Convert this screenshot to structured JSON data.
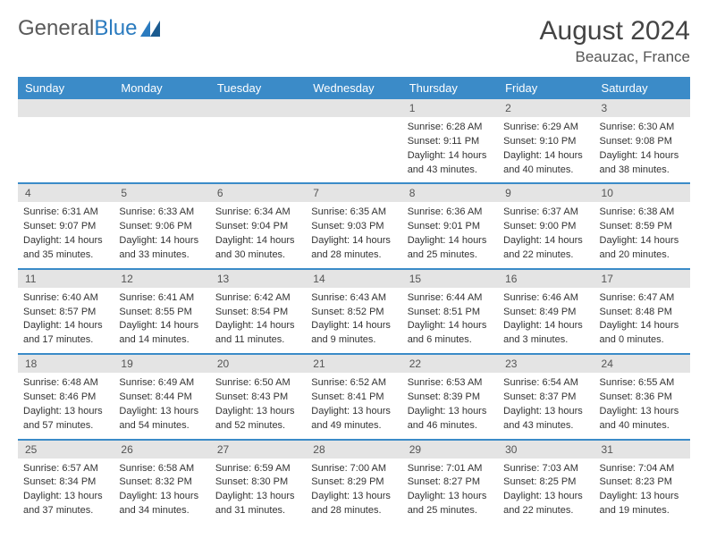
{
  "brand": {
    "part1": "General",
    "part2": "Blue"
  },
  "header": {
    "title": "August 2024",
    "location": "Beauzac, France"
  },
  "colors": {
    "header_blue": "#3b8bc8",
    "daynum_bg": "#e4e4e4",
    "row_border": "#3b8bc8",
    "text": "#333333",
    "title": "#444444"
  },
  "weekdays": [
    "Sunday",
    "Monday",
    "Tuesday",
    "Wednesday",
    "Thursday",
    "Friday",
    "Saturday"
  ],
  "calendar": {
    "rows": [
      [
        {
          "day": "",
          "sunrise": "",
          "sunset": "",
          "daylight1": "",
          "daylight2": ""
        },
        {
          "day": "",
          "sunrise": "",
          "sunset": "",
          "daylight1": "",
          "daylight2": ""
        },
        {
          "day": "",
          "sunrise": "",
          "sunset": "",
          "daylight1": "",
          "daylight2": ""
        },
        {
          "day": "",
          "sunrise": "",
          "sunset": "",
          "daylight1": "",
          "daylight2": ""
        },
        {
          "day": "1",
          "sunrise": "Sunrise: 6:28 AM",
          "sunset": "Sunset: 9:11 PM",
          "daylight1": "Daylight: 14 hours",
          "daylight2": "and 43 minutes."
        },
        {
          "day": "2",
          "sunrise": "Sunrise: 6:29 AM",
          "sunset": "Sunset: 9:10 PM",
          "daylight1": "Daylight: 14 hours",
          "daylight2": "and 40 minutes."
        },
        {
          "day": "3",
          "sunrise": "Sunrise: 6:30 AM",
          "sunset": "Sunset: 9:08 PM",
          "daylight1": "Daylight: 14 hours",
          "daylight2": "and 38 minutes."
        }
      ],
      [
        {
          "day": "4",
          "sunrise": "Sunrise: 6:31 AM",
          "sunset": "Sunset: 9:07 PM",
          "daylight1": "Daylight: 14 hours",
          "daylight2": "and 35 minutes."
        },
        {
          "day": "5",
          "sunrise": "Sunrise: 6:33 AM",
          "sunset": "Sunset: 9:06 PM",
          "daylight1": "Daylight: 14 hours",
          "daylight2": "and 33 minutes."
        },
        {
          "day": "6",
          "sunrise": "Sunrise: 6:34 AM",
          "sunset": "Sunset: 9:04 PM",
          "daylight1": "Daylight: 14 hours",
          "daylight2": "and 30 minutes."
        },
        {
          "day": "7",
          "sunrise": "Sunrise: 6:35 AM",
          "sunset": "Sunset: 9:03 PM",
          "daylight1": "Daylight: 14 hours",
          "daylight2": "and 28 minutes."
        },
        {
          "day": "8",
          "sunrise": "Sunrise: 6:36 AM",
          "sunset": "Sunset: 9:01 PM",
          "daylight1": "Daylight: 14 hours",
          "daylight2": "and 25 minutes."
        },
        {
          "day": "9",
          "sunrise": "Sunrise: 6:37 AM",
          "sunset": "Sunset: 9:00 PM",
          "daylight1": "Daylight: 14 hours",
          "daylight2": "and 22 minutes."
        },
        {
          "day": "10",
          "sunrise": "Sunrise: 6:38 AM",
          "sunset": "Sunset: 8:59 PM",
          "daylight1": "Daylight: 14 hours",
          "daylight2": "and 20 minutes."
        }
      ],
      [
        {
          "day": "11",
          "sunrise": "Sunrise: 6:40 AM",
          "sunset": "Sunset: 8:57 PM",
          "daylight1": "Daylight: 14 hours",
          "daylight2": "and 17 minutes."
        },
        {
          "day": "12",
          "sunrise": "Sunrise: 6:41 AM",
          "sunset": "Sunset: 8:55 PM",
          "daylight1": "Daylight: 14 hours",
          "daylight2": "and 14 minutes."
        },
        {
          "day": "13",
          "sunrise": "Sunrise: 6:42 AM",
          "sunset": "Sunset: 8:54 PM",
          "daylight1": "Daylight: 14 hours",
          "daylight2": "and 11 minutes."
        },
        {
          "day": "14",
          "sunrise": "Sunrise: 6:43 AM",
          "sunset": "Sunset: 8:52 PM",
          "daylight1": "Daylight: 14 hours",
          "daylight2": "and 9 minutes."
        },
        {
          "day": "15",
          "sunrise": "Sunrise: 6:44 AM",
          "sunset": "Sunset: 8:51 PM",
          "daylight1": "Daylight: 14 hours",
          "daylight2": "and 6 minutes."
        },
        {
          "day": "16",
          "sunrise": "Sunrise: 6:46 AM",
          "sunset": "Sunset: 8:49 PM",
          "daylight1": "Daylight: 14 hours",
          "daylight2": "and 3 minutes."
        },
        {
          "day": "17",
          "sunrise": "Sunrise: 6:47 AM",
          "sunset": "Sunset: 8:48 PM",
          "daylight1": "Daylight: 14 hours",
          "daylight2": "and 0 minutes."
        }
      ],
      [
        {
          "day": "18",
          "sunrise": "Sunrise: 6:48 AM",
          "sunset": "Sunset: 8:46 PM",
          "daylight1": "Daylight: 13 hours",
          "daylight2": "and 57 minutes."
        },
        {
          "day": "19",
          "sunrise": "Sunrise: 6:49 AM",
          "sunset": "Sunset: 8:44 PM",
          "daylight1": "Daylight: 13 hours",
          "daylight2": "and 54 minutes."
        },
        {
          "day": "20",
          "sunrise": "Sunrise: 6:50 AM",
          "sunset": "Sunset: 8:43 PM",
          "daylight1": "Daylight: 13 hours",
          "daylight2": "and 52 minutes."
        },
        {
          "day": "21",
          "sunrise": "Sunrise: 6:52 AM",
          "sunset": "Sunset: 8:41 PM",
          "daylight1": "Daylight: 13 hours",
          "daylight2": "and 49 minutes."
        },
        {
          "day": "22",
          "sunrise": "Sunrise: 6:53 AM",
          "sunset": "Sunset: 8:39 PM",
          "daylight1": "Daylight: 13 hours",
          "daylight2": "and 46 minutes."
        },
        {
          "day": "23",
          "sunrise": "Sunrise: 6:54 AM",
          "sunset": "Sunset: 8:37 PM",
          "daylight1": "Daylight: 13 hours",
          "daylight2": "and 43 minutes."
        },
        {
          "day": "24",
          "sunrise": "Sunrise: 6:55 AM",
          "sunset": "Sunset: 8:36 PM",
          "daylight1": "Daylight: 13 hours",
          "daylight2": "and 40 minutes."
        }
      ],
      [
        {
          "day": "25",
          "sunrise": "Sunrise: 6:57 AM",
          "sunset": "Sunset: 8:34 PM",
          "daylight1": "Daylight: 13 hours",
          "daylight2": "and 37 minutes."
        },
        {
          "day": "26",
          "sunrise": "Sunrise: 6:58 AM",
          "sunset": "Sunset: 8:32 PM",
          "daylight1": "Daylight: 13 hours",
          "daylight2": "and 34 minutes."
        },
        {
          "day": "27",
          "sunrise": "Sunrise: 6:59 AM",
          "sunset": "Sunset: 8:30 PM",
          "daylight1": "Daylight: 13 hours",
          "daylight2": "and 31 minutes."
        },
        {
          "day": "28",
          "sunrise": "Sunrise: 7:00 AM",
          "sunset": "Sunset: 8:29 PM",
          "daylight1": "Daylight: 13 hours",
          "daylight2": "and 28 minutes."
        },
        {
          "day": "29",
          "sunrise": "Sunrise: 7:01 AM",
          "sunset": "Sunset: 8:27 PM",
          "daylight1": "Daylight: 13 hours",
          "daylight2": "and 25 minutes."
        },
        {
          "day": "30",
          "sunrise": "Sunrise: 7:03 AM",
          "sunset": "Sunset: 8:25 PM",
          "daylight1": "Daylight: 13 hours",
          "daylight2": "and 22 minutes."
        },
        {
          "day": "31",
          "sunrise": "Sunrise: 7:04 AM",
          "sunset": "Sunset: 8:23 PM",
          "daylight1": "Daylight: 13 hours",
          "daylight2": "and 19 minutes."
        }
      ]
    ]
  }
}
